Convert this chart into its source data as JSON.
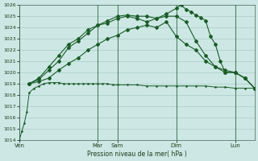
{
  "background_color": "#cde8e4",
  "grid_color": "#aaccc8",
  "line_color": "#1a5c28",
  "xlabel": "Pression niveau de la mer( hPa )",
  "ylim": [
    1014,
    1026
  ],
  "ytick_labels": [
    "1014",
    "1015",
    "1016",
    "1017",
    "1018",
    "1019",
    "1020",
    "1021",
    "1022",
    "1023",
    "1024",
    "1025",
    "1026"
  ],
  "ytick_vals": [
    1014,
    1015,
    1016,
    1017,
    1018,
    1019,
    1020,
    1021,
    1022,
    1023,
    1024,
    1025,
    1026
  ],
  "xlim": [
    0,
    48
  ],
  "day_labels": [
    "Ven",
    "Mar",
    "Sam",
    "Dim",
    "Lun"
  ],
  "day_x": [
    0,
    16,
    20,
    32,
    44
  ],
  "vline_x": [
    0,
    16,
    20,
    32,
    44
  ],
  "s1_x": [
    0,
    0.5,
    1,
    1.5,
    2,
    3,
    4,
    5,
    6,
    7,
    8,
    9,
    10,
    11,
    12,
    13,
    14,
    15,
    16,
    17,
    18,
    19,
    20,
    22,
    24,
    26,
    28,
    30,
    32,
    34,
    36,
    38,
    40,
    42,
    44,
    46,
    48
  ],
  "s1_y": [
    1014.0,
    1014.8,
    1015.5,
    1016.5,
    1018.2,
    1018.6,
    1018.8,
    1019.0,
    1019.1,
    1019.1,
    1019.1,
    1019.0,
    1019.0,
    1019.0,
    1019.0,
    1019.0,
    1019.0,
    1019.0,
    1019.0,
    1019.0,
    1019.0,
    1018.9,
    1018.9,
    1018.9,
    1018.9,
    1018.8,
    1018.8,
    1018.8,
    1018.8,
    1018.8,
    1018.8,
    1018.8,
    1018.7,
    1018.7,
    1018.6,
    1018.6,
    1018.6
  ],
  "s2_x": [
    2,
    4,
    6,
    8,
    10,
    12,
    14,
    16,
    18,
    20,
    22,
    24,
    26,
    28,
    30,
    32,
    34,
    36,
    38,
    40,
    42,
    44,
    46,
    48
  ],
  "s2_y": [
    1019.0,
    1019.2,
    1019.5,
    1020.2,
    1020.8,
    1021.3,
    1022.0,
    1022.5,
    1023.0,
    1023.3,
    1023.8,
    1024.0,
    1024.2,
    1024.0,
    1024.5,
    1023.2,
    1022.5,
    1022.0,
    1021.0,
    1020.5,
    1020.0,
    1020.0,
    1019.5,
    1018.6
  ],
  "s3_x": [
    2,
    4,
    6,
    8,
    10,
    12,
    14,
    16,
    18,
    20,
    22,
    24,
    26,
    28,
    30,
    32,
    33,
    34,
    35,
    36,
    37,
    38,
    39,
    40,
    41,
    42,
    44,
    46,
    48
  ],
  "s3_y": [
    1019.0,
    1019.5,
    1020.5,
    1021.5,
    1022.5,
    1023.0,
    1023.8,
    1024.2,
    1024.4,
    1024.8,
    1025.0,
    1024.8,
    1024.5,
    1024.8,
    1025.2,
    1025.7,
    1026.0,
    1025.6,
    1025.4,
    1025.1,
    1024.9,
    1024.6,
    1023.2,
    1022.5,
    1021.0,
    1020.0,
    1020.0,
    1019.5,
    1018.6
  ],
  "s4_x": [
    2,
    4,
    6,
    8,
    10,
    12,
    14,
    16,
    18,
    20,
    22,
    24,
    26,
    28,
    30,
    32,
    34,
    36,
    38,
    40,
    42,
    44,
    46,
    48
  ],
  "s4_y": [
    1019.0,
    1019.4,
    1020.2,
    1021.0,
    1022.2,
    1022.8,
    1023.5,
    1024.2,
    1024.6,
    1025.0,
    1025.1,
    1025.0,
    1025.0,
    1024.8,
    1025.0,
    1025.0,
    1024.5,
    1022.8,
    1021.5,
    1020.5,
    1020.2,
    1020.0,
    1019.5,
    1018.6
  ]
}
